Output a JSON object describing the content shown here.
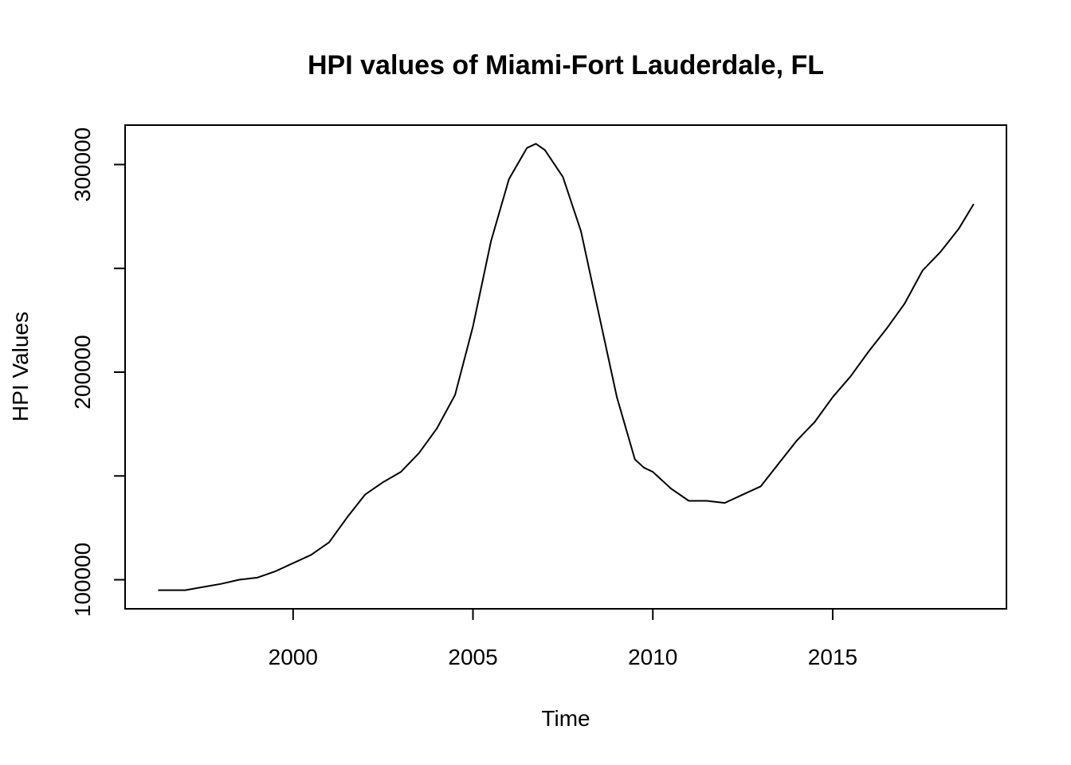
{
  "chart_data": {
    "type": "line",
    "title": "HPI values of Miami-Fort Lauderdale, FL",
    "xlabel": "Time",
    "ylabel": "HPI Values",
    "xlim": [
      1995.33,
      2019.83
    ],
    "ylim": [
      86000,
      319000
    ],
    "x_ticks": [
      2000,
      2005,
      2010,
      2015
    ],
    "x_tick_labels": [
      "2000",
      "2005",
      "2010",
      "2015"
    ],
    "y_ticks": [
      100000,
      150000,
      200000,
      250000,
      300000
    ],
    "y_tick_labels": [
      "100000",
      "",
      "200000",
      "",
      "300000"
    ],
    "grid": false,
    "legend": "none",
    "line_color": "#000000",
    "series": [
      {
        "x": [
          1996.25,
          1997.0,
          1997.5,
          1998.0,
          1998.5,
          1999.0,
          1999.5,
          2000.0,
          2000.5,
          2001.0,
          2001.5,
          2002.0,
          2002.5,
          2003.0,
          2003.5,
          2004.0,
          2004.5,
          2005.0,
          2005.5,
          2006.0,
          2006.5,
          2006.75,
          2007.0,
          2007.5,
          2008.0,
          2008.5,
          2009.0,
          2009.5,
          2009.75,
          2010.0,
          2010.5,
          2011.0,
          2011.5,
          2012.0,
          2012.5,
          2013.0,
          2013.5,
          2014.0,
          2014.5,
          2015.0,
          2015.5,
          2016.0,
          2016.5,
          2017.0,
          2017.5,
          2018.0,
          2018.5,
          2018.92
        ],
        "y": [
          95000,
          95000,
          96500,
          98000,
          100000,
          101000,
          104000,
          108000,
          112000,
          118000,
          130000,
          141000,
          147000,
          152000,
          161000,
          173000,
          189000,
          222000,
          263000,
          293000,
          308000,
          310000,
          307000,
          294000,
          268000,
          228000,
          188000,
          158000,
          154000,
          152000,
          144000,
          138000,
          138000,
          137000,
          141000,
          145000,
          156000,
          167000,
          176000,
          188000,
          198000,
          210000,
          221000,
          233000,
          249000,
          258000,
          269000,
          281000
        ]
      }
    ]
  }
}
